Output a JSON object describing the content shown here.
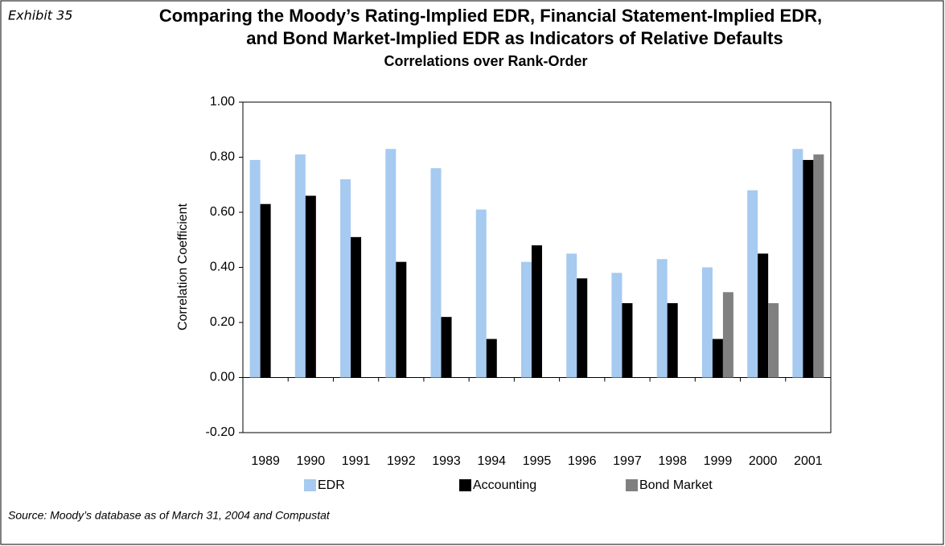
{
  "chart_data": {
    "type": "bar",
    "exhibit": "Exhibit 35",
    "title": [
      "Comparing the Moody’s Rating-Implied EDR, Financial Statement-Implied EDR,",
      "and Bond Market-Implied EDR as Indicators of Relative Defaults"
    ],
    "subtitle": "Correlations over Rank-Order",
    "y_label": "Correlation Coefficient",
    "source": "Source: Moody’s database as of March 31, 2004 and Compustat",
    "categories": [
      "1989",
      "1990",
      "1991",
      "1992",
      "1993",
      "1994",
      "1995",
      "1996",
      "1997",
      "1998",
      "1999",
      "2000",
      "2001"
    ],
    "series": [
      {
        "name": "EDR",
        "color": "#a6caf0",
        "values": [
          0.79,
          0.81,
          0.72,
          0.83,
          0.76,
          0.61,
          0.42,
          0.45,
          0.38,
          0.43,
          0.4,
          0.68,
          0.83
        ]
      },
      {
        "name": "Accounting",
        "color": "#000000",
        "values": [
          0.63,
          0.66,
          0.51,
          0.42,
          0.22,
          0.14,
          0.48,
          0.36,
          0.27,
          0.27,
          0.14,
          0.45,
          0.79
        ]
      },
      {
        "name": "Bond Market",
        "color": "#808080",
        "values": [
          null,
          null,
          null,
          null,
          null,
          null,
          null,
          null,
          null,
          null,
          0.31,
          0.27,
          0.81
        ]
      }
    ],
    "ylim": [
      -0.2,
      1.0
    ],
    "yticks": [
      {
        "value": -0.2,
        "label": "-0.20"
      },
      {
        "value": 0,
        "label": "0.00"
      },
      {
        "value": 0.2,
        "label": "0.20"
      },
      {
        "value": 0.4,
        "label": "0.40"
      },
      {
        "value": 0.6,
        "label": "0.60"
      },
      {
        "value": 0.8,
        "label": "0.80"
      },
      {
        "value": 1.0,
        "label": "1.00"
      }
    ],
    "grid": false,
    "legend": "bottom"
  }
}
